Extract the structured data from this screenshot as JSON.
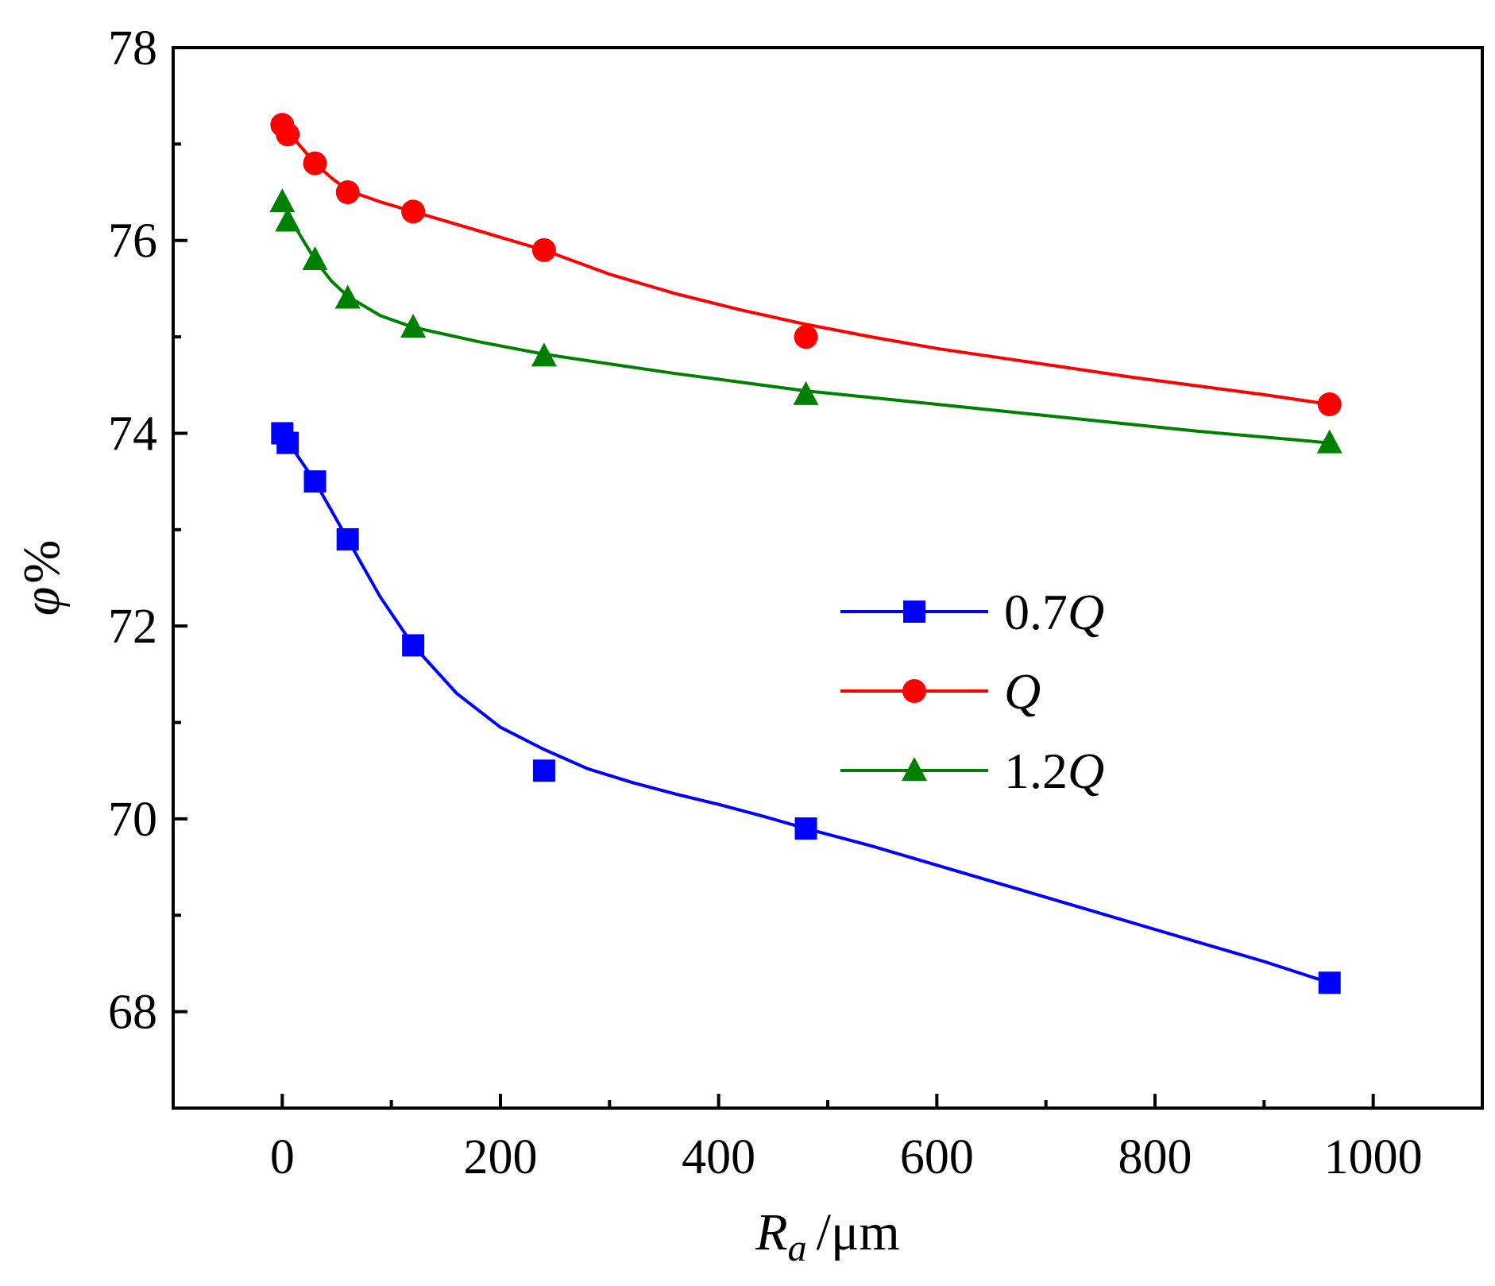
{
  "chart_data": {
    "type": "line",
    "title": "",
    "xlabel": "R_a /μm",
    "xlabel_parts": {
      "symbol": "R",
      "subscript": "a",
      "unit": "/μm"
    },
    "ylabel": "φ%",
    "ylabel_parts": {
      "symbol": "φ",
      "unit": "%"
    },
    "xlim": [
      -100,
      1100
    ],
    "ylim": [
      67,
      78
    ],
    "xticks": [
      0,
      200,
      400,
      600,
      800,
      1000
    ],
    "xtick_labels": [
      "0",
      "200",
      "400",
      "600",
      "800",
      "1000"
    ],
    "xminor": [
      100,
      300,
      500,
      700,
      900
    ],
    "yticks": [
      68,
      70,
      72,
      74,
      76,
      78
    ],
    "ytick_labels": [
      "68",
      "70",
      "72",
      "74",
      "76",
      "78"
    ],
    "yminor": [
      67,
      69,
      71,
      73,
      75,
      77
    ],
    "grid": false,
    "legend_position": "center-right",
    "series": [
      {
        "name": "0.7Q",
        "label_prefix": "0.7",
        "label_italic": "Q",
        "color": "#0000ff",
        "marker": "square",
        "x": [
          0,
          5,
          30,
          60,
          120,
          240,
          480,
          960
        ],
        "y": [
          74.0,
          73.9,
          73.5,
          72.9,
          71.8,
          70.5,
          69.9,
          68.3
        ],
        "curve_x": [
          0,
          30,
          60,
          90,
          120,
          160,
          200,
          240,
          280,
          320,
          360,
          400,
          440,
          480,
          540,
          600,
          660,
          720,
          780,
          840,
          900,
          960
        ],
        "curve_y": [
          74.0,
          73.5,
          72.9,
          72.3,
          71.8,
          71.3,
          70.95,
          70.72,
          70.52,
          70.38,
          70.26,
          70.15,
          70.03,
          69.9,
          69.72,
          69.52,
          69.32,
          69.12,
          68.92,
          68.72,
          68.52,
          68.3
        ]
      },
      {
        "name": "Q",
        "label_prefix": "",
        "label_italic": "Q",
        "color": "#ff0000",
        "marker": "circle",
        "x": [
          0,
          5,
          30,
          60,
          120,
          240,
          480,
          960
        ],
        "y": [
          77.2,
          77.1,
          76.8,
          76.5,
          76.3,
          75.9,
          75.0,
          74.3
        ],
        "curve_x": [
          0,
          15,
          30,
          45,
          60,
          90,
          120,
          180,
          240,
          300,
          360,
          420,
          480,
          540,
          600,
          660,
          720,
          780,
          840,
          900,
          960
        ],
        "curve_y": [
          77.2,
          77.0,
          76.8,
          76.65,
          76.52,
          76.4,
          76.3,
          76.1,
          75.9,
          75.65,
          75.45,
          75.28,
          75.13,
          75.0,
          74.88,
          74.78,
          74.68,
          74.58,
          74.49,
          74.4,
          74.3
        ]
      },
      {
        "name": "1.2Q",
        "label_prefix": "1.2",
        "label_italic": "Q",
        "color": "#008000",
        "marker": "triangle",
        "x": [
          0,
          5,
          30,
          60,
          120,
          240,
          480,
          960
        ],
        "y": [
          76.4,
          76.2,
          75.8,
          75.4,
          75.1,
          74.8,
          74.4,
          73.9
        ],
        "curve_x": [
          0,
          15,
          30,
          45,
          60,
          90,
          120,
          180,
          240,
          300,
          360,
          420,
          480,
          540,
          600,
          660,
          720,
          780,
          840,
          900,
          960
        ],
        "curve_y": [
          76.4,
          76.08,
          75.8,
          75.58,
          75.42,
          75.22,
          75.1,
          74.95,
          74.82,
          74.72,
          74.62,
          74.53,
          74.44,
          74.37,
          74.3,
          74.23,
          74.16,
          74.09,
          74.02,
          73.96,
          73.9
        ]
      }
    ]
  }
}
